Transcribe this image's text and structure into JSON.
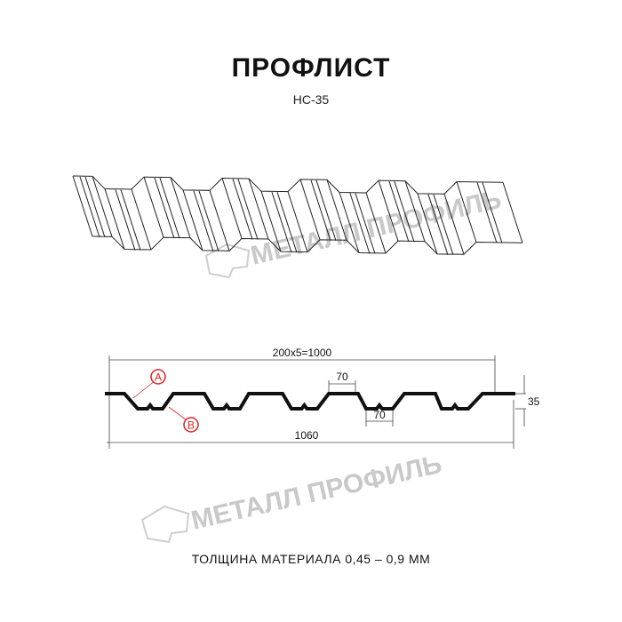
{
  "title": "ПРОФЛИСТ",
  "subtitle": "НС-35",
  "watermark": "МЕТАЛЛ ПРОФИЛЬ",
  "dimensions": {
    "pitch_total": "200x5=1000",
    "top_width": "70",
    "bottom_width": "70",
    "height": "35",
    "total_width": "1060"
  },
  "markers": {
    "a": "A",
    "b": "B"
  },
  "thickness_note": "ТОЛЩИНА МАТЕРИАЛА 0,45 – 0,9 ММ",
  "colors": {
    "profile": "#111111",
    "marker": "#e02020",
    "watermark": "#c9c9c9"
  }
}
